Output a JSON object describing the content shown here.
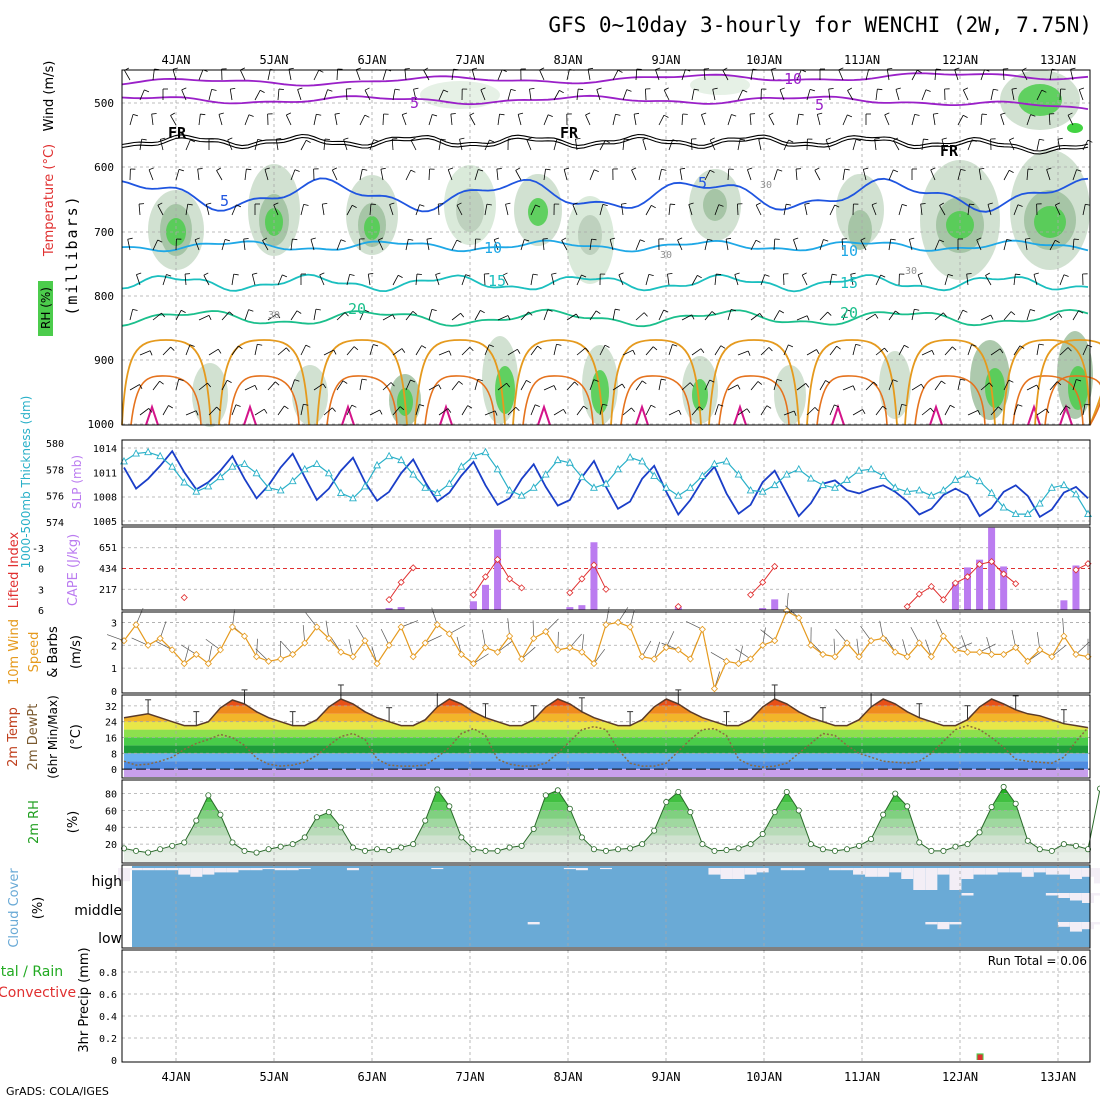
{
  "title": "GFS 0~10day 3-hourly for WENCHI (2W, 7.75N)",
  "footer": "GrADS: COLA/IGES",
  "colors": {
    "rh": "#4ccc4c",
    "temp_blue": "#1f55e0",
    "temp_cyan": "#1fa8e6",
    "temp_teal": "#1bbfbf",
    "temp_green": "#1bbf8c",
    "temp_orange": "#e59a1e",
    "temp_orange2": "#e5731e",
    "temp_pink": "#d4148a",
    "freezing": "#000000",
    "minus": "#9a20c8",
    "slp": "#1a3ec8",
    "thickness": "#29b0c8",
    "li": "#e03030",
    "cape": "#bb7cf0",
    "wind10": "#e59a1e",
    "dewpt": "#8a6a40",
    "cloud": "#6aaad6",
    "grid": "#a8a8a8"
  },
  "chart_data": [
    {
      "type": "contour",
      "panel": "Upper-air cross-section",
      "ylabels": [
        "Wind (m/s)",
        "Temperature (°C)",
        "RH (%)",
        "(millibars)"
      ],
      "x_ticks": [
        "4JAN",
        "5JAN",
        "6JAN",
        "7JAN",
        "8JAN",
        "9JAN",
        "10JAN",
        "11JAN",
        "12JAN",
        "13JAN"
      ],
      "y_ticks": [
        500,
        600,
        700,
        800,
        900,
        1000
      ],
      "y_range": [
        450,
        1000
      ],
      "contour_labels": [
        "-10",
        "5",
        "FR",
        "5",
        "10",
        "15",
        "20",
        "30"
      ],
      "temp_levels_mb": {
        "-10": 475,
        "-5": 500,
        "FR": 555,
        "-5b": 500,
        "5": 640,
        "10": 720,
        "15": 775,
        "20": 825
      }
    },
    {
      "type": "line",
      "panel": "Thickness / SLP",
      "ylabel_left": "1000-500mb Thickness (dm)",
      "ylabel_right": "SLP (mb)",
      "y_ticks_left": [
        574,
        576,
        578,
        580
      ],
      "y_ticks_right": [
        1005,
        1008,
        1011,
        1014
      ],
      "series": [
        {
          "name": "SLP (mb)",
          "axis": "right",
          "values": [
            1011.6,
            1009.0,
            1010.2,
            1011.8,
            1013.6,
            1011.0,
            1008.9,
            1009.8,
            1011.2,
            1013.0,
            1010.2,
            1007.8,
            1009.4,
            1011.6,
            1013.3,
            1010.4,
            1007.6,
            1009.0,
            1011.2,
            1012.8,
            1009.8,
            1007.5,
            1008.6,
            1010.9,
            1012.6,
            1009.8,
            1007.4,
            1008.5,
            1010.6,
            1012.3,
            1009.4,
            1007.0,
            1007.8,
            1010.2,
            1012.0,
            1009.2,
            1006.9,
            1007.6,
            1010.4,
            1012.4,
            1009.2,
            1006.5,
            1007.4,
            1010.2,
            1011.8,
            1008.6,
            1005.8,
            1007.6,
            1010.0,
            1011.7,
            1008.4,
            1005.9,
            1007.0,
            1009.8,
            1011.2,
            1008.4,
            1005.6,
            1007.2,
            1009.6,
            1010.0,
            1008.8,
            1008.4,
            1009.0,
            1009.4,
            1008.6,
            1007.4,
            1005.8,
            1006.5,
            1008.2,
            1009.0,
            1008.2,
            1005.6,
            1006.6,
            1008.6,
            1009.4,
            1008.1,
            1005.5,
            1006.4,
            1008.5,
            1009.2,
            1007.8
          ]
        },
        {
          "name": "Thickness (dm)",
          "axis": "left",
          "values": [
            578.6,
            579.2,
            579.3,
            579.0,
            578.2,
            577.0,
            576.3,
            576.7,
            577.4,
            578.2,
            578.4,
            577.7,
            576.6,
            576.4,
            577.1,
            578.0,
            578.4,
            577.7,
            576.2,
            575.8,
            576.7,
            578.3,
            579.0,
            578.7,
            577.6,
            576.6,
            576.2,
            576.9,
            578.2,
            579.0,
            579.3,
            578.0,
            576.4,
            576.0,
            576.6,
            577.6,
            578.7,
            578.5,
            577.4,
            576.6,
            576.9,
            578.0,
            578.9,
            578.6,
            577.5,
            576.6,
            576.0,
            576.6,
            577.5,
            578.4,
            578.6,
            577.6,
            576.4,
            576.3,
            576.8,
            577.6,
            578.0,
            577.3,
            576.8,
            576.6,
            577.2,
            577.9,
            578.0,
            577.5,
            576.6,
            576.3,
            576.4,
            576.0,
            576.4,
            577.2,
            577.6,
            577.1,
            576.2,
            575.1,
            574.6,
            574.6,
            575.4,
            576.6,
            576.8,
            576.1,
            574.6
          ]
        }
      ]
    },
    {
      "type": "bar+line",
      "panel": "Lifted Index / CAPE",
      "ylabel_left": "Lifted Index",
      "ylabel_right": "CAPE (J/kg)",
      "y_ticks_left": [
        -3,
        0,
        3,
        6
      ],
      "y_ticks_right": [
        217,
        434,
        651
      ],
      "cape_bars": [
        {
          "t": 29,
          "value": 90
        },
        {
          "t": 30,
          "value": 260
        },
        {
          "t": 31,
          "value": 830
        },
        {
          "t": 37,
          "value": 30
        },
        {
          "t": 38,
          "value": 50
        },
        {
          "t": 39,
          "value": 700
        },
        {
          "t": 22,
          "value": 20
        },
        {
          "t": 23,
          "value": 30
        },
        {
          "t": 46,
          "value": 30
        },
        {
          "t": 53,
          "value": 20
        },
        {
          "t": 54,
          "value": 110
        },
        {
          "t": 69,
          "value": 290
        },
        {
          "t": 70,
          "value": 440
        },
        {
          "t": 71,
          "value": 520
        },
        {
          "t": 72,
          "value": 850
        },
        {
          "t": 73,
          "value": 450
        },
        {
          "t": 78,
          "value": 100
        },
        {
          "t": 79,
          "value": 460
        }
      ],
      "li_values": [
        null,
        null,
        null,
        null,
        null,
        4.2,
        null,
        null,
        null,
        null,
        null,
        null,
        null,
        null,
        null,
        null,
        null,
        null,
        null,
        null,
        null,
        null,
        4.5,
        2.0,
        -0.1,
        null,
        null,
        null,
        null,
        3.8,
        1.2,
        -1.3,
        1.5,
        2.8,
        null,
        null,
        null,
        3.5,
        1.5,
        -0.5,
        3.0,
        null,
        null,
        null,
        null,
        null,
        5.5,
        null,
        null,
        null,
        null,
        null,
        3.8,
        2.0,
        -0.3,
        null,
        null,
        null,
        null,
        null,
        null,
        null,
        null,
        null,
        null,
        5.5,
        3.7,
        2.6,
        4.5,
        2.1,
        1.2,
        -0.6,
        -1.0,
        0.8,
        2.2,
        null,
        null,
        null,
        null,
        0.2,
        -0.7
      ]
    },
    {
      "type": "line",
      "panel": "10m Wind",
      "ylabel": "10m Wind Speed & Barbs (m/s)",
      "y_ticks": [
        0,
        1,
        2,
        3
      ],
      "values": [
        2.2,
        2.9,
        2.0,
        2.3,
        1.8,
        1.2,
        1.6,
        1.2,
        1.8,
        2.8,
        2.4,
        1.5,
        1.3,
        1.4,
        1.6,
        2.1,
        2.8,
        2.3,
        1.7,
        1.5,
        2.2,
        1.2,
        2.0,
        2.8,
        1.5,
        2.1,
        2.9,
        2.5,
        1.6,
        1.2,
        1.9,
        1.7,
        2.4,
        1.4,
        2.3,
        2.6,
        1.8,
        1.9,
        1.7,
        1.2,
        2.9,
        3.0,
        2.8,
        1.5,
        1.4,
        1.9,
        1.8,
        1.4,
        2.7,
        0.1,
        1.3,
        1.2,
        1.4,
        2.0,
        2.2,
        3.5,
        3.2,
        2.0,
        1.6,
        1.5,
        2.1,
        1.5,
        2.2,
        2.3,
        1.7,
        1.5,
        2.1,
        1.5,
        2.4,
        1.8,
        1.7,
        1.7,
        1.6,
        1.6,
        1.9,
        1.3,
        1.8,
        1.5,
        2.4,
        1.6,
        1.5
      ]
    },
    {
      "type": "line",
      "panel": "2m Temp",
      "ylabel": "2m Temp 2m DewPt (6hr Min/Max) (°C)",
      "y_ticks": [
        0,
        8,
        16,
        24,
        32
      ],
      "temp_values": [
        26.0,
        27.0,
        28.0,
        26.0,
        24.0,
        22.0,
        22.0,
        24.0,
        31.0,
        35.0,
        33.0,
        29.0,
        26.0,
        24.0,
        22.0,
        22.0,
        25.0,
        31.5,
        35.5,
        33.0,
        29.0,
        26.0,
        24.0,
        22.0,
        22.0,
        25.0,
        31.5,
        35.5,
        33.0,
        29.0,
        26.0,
        24.0,
        22.0,
        22.0,
        25.0,
        31.5,
        35.5,
        33.0,
        29.0,
        26.0,
        24.0,
        22.0,
        22.0,
        25.0,
        31.5,
        35.5,
        33.0,
        29.0,
        26.0,
        24.0,
        22.0,
        22.0,
        25.0,
        31.5,
        35.5,
        33.0,
        29.0,
        26.0,
        24.0,
        22.0,
        22.0,
        25.0,
        31.5,
        35.5,
        33.0,
        29.0,
        26.0,
        24.0,
        22.0,
        22.0,
        25.0,
        31.5,
        35.5,
        33.0,
        30.0,
        28.0,
        27.0,
        25.0,
        23.0,
        22.0,
        21.0
      ],
      "dewpt_values": [
        4.0,
        2.0,
        2.5,
        4.0,
        6.0,
        10.0,
        13.0,
        15.0,
        17.5,
        16.0,
        12.0,
        5.5,
        2.5,
        1.5,
        2.0,
        3.5,
        7.0,
        12.0,
        16.5,
        18.0,
        15.0,
        5.0,
        2.0,
        1.5,
        1.5,
        2.0,
        6.0,
        11.0,
        18.0,
        20.5,
        17.0,
        5.0,
        2.5,
        1.5,
        1.5,
        3.0,
        8.0,
        14.0,
        20.0,
        21.5,
        20.0,
        10.0,
        3.0,
        1.5,
        1.5,
        3.0,
        9.0,
        15.0,
        20.0,
        20.5,
        17.0,
        5.0,
        2.0,
        1.0,
        1.5,
        3.0,
        8.0,
        13.0,
        18.0,
        17.0,
        12.0,
        8.0,
        6.0,
        4.0,
        3.5,
        3.0,
        4.0,
        8.0,
        14.0,
        20.0,
        22.0,
        20.0,
        16.0,
        11.0,
        5.0,
        4.0,
        3.5,
        3.0,
        6.0,
        14.0,
        21.0
      ],
      "bands": [
        "#c8a0ec",
        "#4f8ce0",
        "#6ab2f0",
        "#1e9c3a",
        "#49cc49",
        "#8ce04e",
        "#e8e648",
        "#f2b52a",
        "#f08a1e",
        "#e85018"
      ]
    },
    {
      "type": "area",
      "panel": "2m RH",
      "ylabel": "2m RH (%)",
      "y_ticks": [
        20,
        40,
        60,
        80
      ],
      "values": [
        15,
        12,
        10,
        14,
        18,
        22,
        48,
        78,
        55,
        22,
        12,
        10,
        14,
        17,
        20,
        28,
        52,
        58,
        40,
        16,
        12,
        14,
        13,
        16,
        20,
        48,
        85,
        65,
        28,
        14,
        12,
        12,
        16,
        18,
        38,
        78,
        84,
        62,
        28,
        14,
        12,
        14,
        15,
        20,
        36,
        70,
        82,
        58,
        20,
        12,
        13,
        15,
        20,
        32,
        58,
        82,
        60,
        20,
        14,
        12,
        14,
        18,
        26,
        55,
        80,
        65,
        22,
        12,
        12,
        17,
        20,
        34,
        64,
        88,
        68,
        24,
        14,
        12,
        20,
        18,
        14,
        86
      ]
    },
    {
      "type": "bar",
      "panel": "Cloud Cover",
      "ylabel": "Cloud Cover (%)",
      "layers": [
        "high",
        "middle",
        "low"
      ],
      "high_values": [
        60,
        10,
        10,
        10,
        10,
        30,
        40,
        30,
        20,
        20,
        10,
        10,
        5,
        10,
        10,
        5,
        0,
        0,
        0,
        10,
        0,
        0,
        0,
        0,
        0,
        0,
        5,
        0,
        0,
        0,
        0,
        0,
        0,
        0,
        0,
        0,
        0,
        5,
        10,
        0,
        5,
        0,
        0,
        0,
        0,
        0,
        0,
        0,
        0,
        30,
        50,
        50,
        30,
        20,
        0,
        10,
        10,
        0,
        0,
        10,
        10,
        30,
        40,
        40,
        20,
        50,
        100,
        100,
        30,
        100,
        50,
        30,
        30,
        20,
        20,
        40,
        20,
        30,
        30,
        50,
        40,
        70
      ],
      "middle_values": [
        0,
        0,
        0,
        0,
        0,
        0,
        0,
        0,
        0,
        0,
        0,
        0,
        0,
        0,
        0,
        0,
        0,
        0,
        0,
        0,
        0,
        0,
        0,
        0,
        0,
        0,
        0,
        0,
        0,
        0,
        0,
        0,
        0,
        0,
        0,
        0,
        0,
        0,
        0,
        0,
        0,
        0,
        0,
        0,
        0,
        0,
        0,
        0,
        0,
        0,
        0,
        0,
        0,
        0,
        0,
        0,
        0,
        0,
        0,
        0,
        0,
        0,
        0,
        0,
        0,
        0,
        0,
        0,
        0,
        0,
        10,
        0,
        0,
        0,
        0,
        0,
        0,
        10,
        20,
        30,
        40,
        10
      ],
      "low_values": [
        0,
        0,
        0,
        0,
        0,
        0,
        0,
        0,
        0,
        0,
        0,
        0,
        0,
        0,
        0,
        0,
        0,
        0,
        0,
        0,
        0,
        0,
        0,
        0,
        0,
        0,
        0,
        0,
        0,
        0,
        0,
        0,
        0,
        0,
        10,
        0,
        0,
        0,
        0,
        0,
        0,
        0,
        0,
        0,
        0,
        0,
        0,
        0,
        0,
        0,
        0,
        0,
        0,
        0,
        0,
        0,
        0,
        0,
        0,
        0,
        0,
        0,
        0,
        0,
        0,
        0,
        0,
        10,
        30,
        10,
        0,
        0,
        0,
        0,
        0,
        0,
        0,
        0,
        20,
        40,
        30,
        10
      ]
    },
    {
      "type": "bar",
      "panel": "3hr Precip",
      "ylabel_left": "Total / Rain",
      "ylabel_left2": "Convective",
      "ylabel": "3hr Precip (mm)",
      "annotation": "Run Total = 0.06",
      "y_ticks": [
        0,
        0.2,
        0.4,
        0.6,
        0.8
      ],
      "bars": [
        {
          "t": 71,
          "total": 0.06,
          "convective": 0.05
        }
      ]
    }
  ]
}
